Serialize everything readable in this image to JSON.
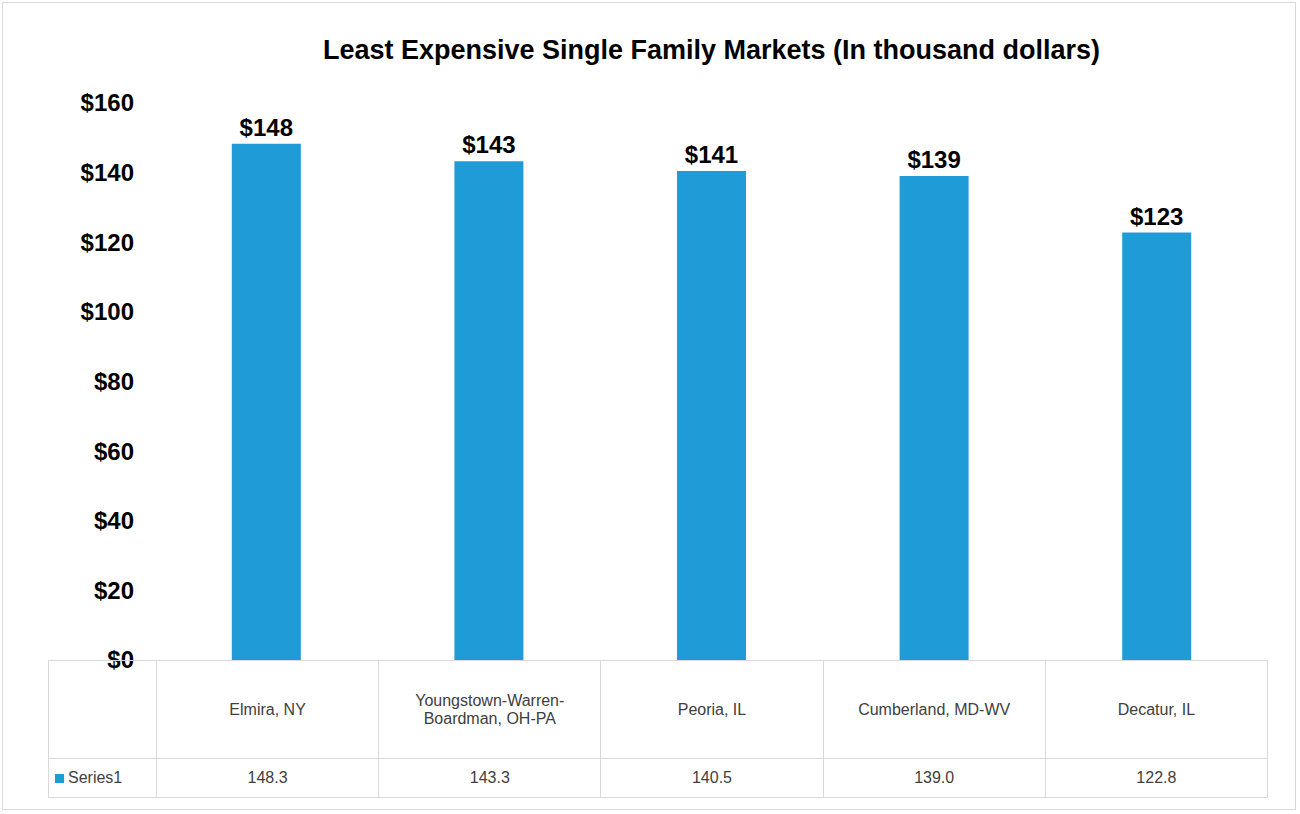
{
  "chart_data": {
    "type": "bar",
    "title": "Least Expensive Single Family Markets (In thousand dollars)",
    "categories": [
      "Elmira, NY",
      "Youngstown-Warren-Boardman, OH-PA",
      "Peoria, IL",
      "Cumberland, MD-WV",
      "Decatur, IL"
    ],
    "series": [
      {
        "name": "Series1",
        "color": "#1f9bd7",
        "values": [
          148.3,
          143.3,
          140.5,
          139.0,
          122.8
        ],
        "value_labels": [
          "$148",
          "$143",
          "$141",
          "$139",
          "$123"
        ]
      }
    ],
    "ylim": [
      0,
      160
    ],
    "yticks": [
      {
        "value": 0,
        "label": "$0"
      },
      {
        "value": 20,
        "label": "$20"
      },
      {
        "value": 40,
        "label": "$40"
      },
      {
        "value": 60,
        "label": "$60"
      },
      {
        "value": 80,
        "label": "$80"
      },
      {
        "value": 100,
        "label": "$100"
      },
      {
        "value": 120,
        "label": "$120"
      },
      {
        "value": 140,
        "label": "$140"
      },
      {
        "value": 160,
        "label": "$160"
      }
    ],
    "grid": false,
    "data_labels": true
  }
}
